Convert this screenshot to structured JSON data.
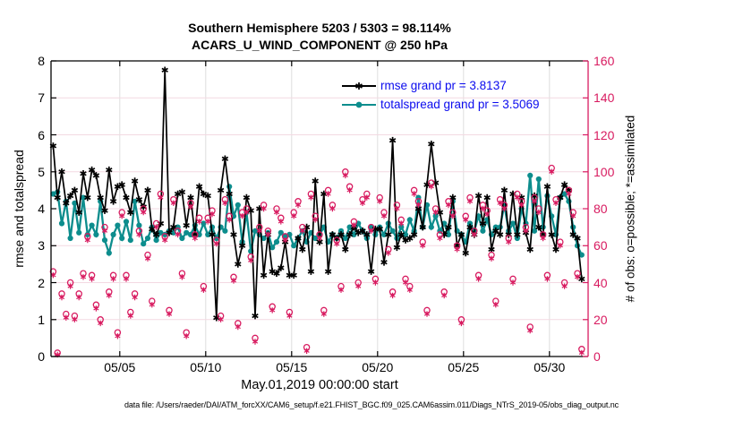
{
  "title": {
    "line1": "Southern Hemisphere 5203 / 5303 = 98.114%",
    "line2": "ACARS_U_WIND_COMPONENT @ 250 hPa"
  },
  "legend": [
    {
      "label": "rmse grand pr = 3.8137",
      "color": "#000000",
      "marker": "asterisk"
    },
    {
      "label": "totalspread grand pr = 3.5069",
      "color": "#0d8d8d",
      "marker": "filled-circle"
    }
  ],
  "axes": {
    "left": {
      "label": "rmse and totalspread",
      "ticks": [
        0,
        1,
        2,
        3,
        4,
        5,
        6,
        7,
        8
      ],
      "range": [
        0,
        8
      ],
      "color": "#000000"
    },
    "right": {
      "label": "# of obs: o=possible; *=assimilated",
      "ticks": [
        0,
        20,
        40,
        60,
        80,
        100,
        120,
        140,
        160
      ],
      "range": [
        0,
        160
      ],
      "color": "#d81b60"
    },
    "x": {
      "label": "May.01,2019 00:00:00 start",
      "tick_labels": [
        "05/05",
        "05/10",
        "05/15",
        "05/20",
        "05/25",
        "05/30"
      ],
      "tick_days": [
        4,
        9,
        14,
        19,
        24,
        29
      ],
      "range_days": [
        0,
        31.25
      ]
    }
  },
  "footer": "data file: /Users/raeder/DAI/ATM_forcXX/CAM6_setup/f.e21.FHIST_BGC.f09_025.CAM6assim.011/Diags_NTrS_2019-05/obs_diag_output.nc",
  "colors": {
    "rmse": "#000000",
    "totalspread": "#0d8d8d",
    "obs": "#d81b60",
    "legend_text": "#0b0bee",
    "grid_h": "#f3d9e2",
    "grid_v": "#dedede",
    "frame": "#000000"
  },
  "chart_data": {
    "type": "line",
    "title": "Southern Hemisphere 5203 / 5303 = 98.114% — ACARS_U_WIND_COMPONENT @ 250 hPa",
    "xlabel": "May.01,2019 00:00:00 start",
    "ylabel_left": "rmse and totalspread",
    "ylabel_right": "# of obs: o=possible; *=assimilated",
    "ylim_left": [
      0,
      8
    ],
    "ylim_right": [
      0,
      160
    ],
    "x_start_days": 0.125,
    "x_step_days": 0.25,
    "series": [
      {
        "name": "rmse",
        "axis": "left",
        "marker": "asterisk",
        "color": "#000000",
        "values": [
          5.7,
          4.3,
          5.0,
          4.15,
          4.35,
          4.5,
          3.9,
          4.95,
          4.3,
          5.05,
          4.9,
          4.3,
          3.95,
          5.05,
          4.2,
          4.6,
          4.65,
          4.3,
          3.9,
          4.75,
          4.25,
          4.05,
          4.5,
          3.45,
          3.3,
          3.6,
          7.75,
          3.35,
          3.5,
          4.4,
          4.45,
          3.55,
          4.3,
          3.3,
          4.6,
          4.4,
          4.35,
          3.3,
          1.05,
          4.5,
          5.35,
          4.4,
          3.3,
          2.5,
          3.0,
          4.3,
          3.95,
          1.1,
          4.0,
          2.2,
          3.3,
          2.3,
          2.25,
          2.4,
          3.1,
          2.2,
          2.2,
          3.2,
          2.9,
          3.5,
          2.3,
          4.75,
          3.1,
          4.4,
          2.3,
          3.3,
          3.2,
          3.3,
          2.9,
          3.3,
          3.5,
          3.35,
          3.4,
          3.3,
          2.3,
          3.45,
          3.45,
          2.55,
          3.3,
          5.85,
          2.95,
          3.3,
          3.15,
          3.2,
          3.3,
          4.0,
          3.5,
          4.65,
          5.75,
          4.7,
          3.9,
          3.3,
          3.5,
          4.3,
          3.0,
          3.3,
          2.8,
          3.5,
          3.3,
          4.35,
          3.6,
          4.3,
          2.9,
          3.4,
          3.3,
          4.5,
          3.3,
          4.4,
          3.3,
          4.3,
          3.35,
          2.9,
          4.35,
          3.5,
          3.3,
          4.6,
          3.3,
          2.9,
          4.3,
          4.65,
          4.5,
          3.3,
          3.2,
          2.1
        ]
      },
      {
        "name": "totalspread",
        "axis": "left",
        "marker": "filled-circle",
        "color": "#0d8d8d",
        "values": [
          4.4,
          4.45,
          3.6,
          4.2,
          3.2,
          4.15,
          3.35,
          4.3,
          3.3,
          3.55,
          3.3,
          4.2,
          3.15,
          2.8,
          3.3,
          3.55,
          3.2,
          3.65,
          3.15,
          4.2,
          3.55,
          3.05,
          3.2,
          3.5,
          3.15,
          3.35,
          3.3,
          3.4,
          3.35,
          3.5,
          3.2,
          3.35,
          3.3,
          3.55,
          3.3,
          3.6,
          3.3,
          3.5,
          3.2,
          3.5,
          3.4,
          4.6,
          3.8,
          4.1,
          3.1,
          3.9,
          2.85,
          3.4,
          3.3,
          3.2,
          3.35,
          2.95,
          3.1,
          3.35,
          3.25,
          3.3,
          3.0,
          3.2,
          3.4,
          3.1,
          3.35,
          3.2,
          3.3,
          3.5,
          3.1,
          3.3,
          3.2,
          3.4,
          3.2,
          3.5,
          3.3,
          3.6,
          3.4,
          3.2,
          3.5,
          3.3,
          3.5,
          3.3,
          3.6,
          3.4,
          3.2,
          3.5,
          3.3,
          3.7,
          3.4,
          4.3,
          3.5,
          4.1,
          3.5,
          3.8,
          3.4,
          3.6,
          3.3,
          4.2,
          3.4,
          3.3,
          3.1,
          3.6,
          3.4,
          3.8,
          3.4,
          3.7,
          3.3,
          3.5,
          3.5,
          4.1,
          3.4,
          3.6,
          3.2,
          4.0,
          3.6,
          4.9,
          3.4,
          4.8,
          3.5,
          4.35,
          3.8,
          3.3,
          4.3,
          4.4,
          4.2,
          3.5,
          3.0,
          2.75
        ]
      },
      {
        "name": "possible",
        "axis": "right",
        "marker": "open-circle",
        "color": "#d81b60",
        "values": [
          46,
          2,
          34,
          23,
          40,
          22,
          34,
          45,
          65,
          44,
          28,
          20,
          70,
          35,
          44,
          13,
          78,
          44,
          24,
          34,
          68,
          80,
          55,
          30,
          72,
          88,
          65,
          25,
          85,
          68,
          45,
          13,
          83,
          66,
          75,
          38,
          75,
          79,
          63,
          22,
          85,
          76,
          43,
          18,
          78,
          80,
          54,
          10,
          70,
          82,
          68,
          27,
          80,
          75,
          65,
          24,
          78,
          84,
          70,
          5,
          88,
          76,
          66,
          25,
          90,
          82,
          63,
          38,
          100,
          92,
          73,
          40,
          85,
          88,
          70,
          42,
          86,
          78,
          58,
          35,
          82,
          74,
          42,
          38,
          90,
          84,
          62,
          25,
          94,
          80,
          66,
          35,
          84,
          78,
          60,
          20,
          76,
          86,
          68,
          44,
          82,
          79,
          55,
          30,
          85,
          82,
          64,
          42,
          88,
          84,
          70,
          16,
          86,
          80,
          66,
          44,
          102,
          85,
          62,
          40,
          90,
          78,
          45,
          4
        ]
      },
      {
        "name": "assimilated",
        "axis": "right",
        "marker": "asterisk",
        "color": "#d81b60",
        "values": [
          44,
          1,
          32,
          21,
          38,
          20,
          32,
          43,
          63,
          42,
          26,
          18,
          68,
          33,
          42,
          11,
          76,
          42,
          22,
          32,
          66,
          78,
          53,
          28,
          70,
          86,
          63,
          23,
          83,
          66,
          43,
          11,
          81,
          64,
          73,
          36,
          73,
          77,
          61,
          20,
          83,
          74,
          41,
          16,
          76,
          78,
          52,
          8,
          68,
          80,
          66,
          25,
          78,
          73,
          63,
          22,
          76,
          82,
          68,
          3,
          86,
          74,
          64,
          23,
          88,
          80,
          61,
          36,
          98,
          90,
          71,
          38,
          83,
          86,
          68,
          40,
          84,
          76,
          56,
          33,
          80,
          72,
          40,
          36,
          88,
          82,
          60,
          23,
          92,
          78,
          64,
          33,
          82,
          76,
          58,
          18,
          74,
          84,
          66,
          42,
          80,
          77,
          53,
          28,
          83,
          80,
          62,
          40,
          86,
          82,
          68,
          14,
          84,
          78,
          64,
          42,
          100,
          83,
          60,
          38,
          88,
          76,
          43,
          2
        ]
      }
    ]
  }
}
